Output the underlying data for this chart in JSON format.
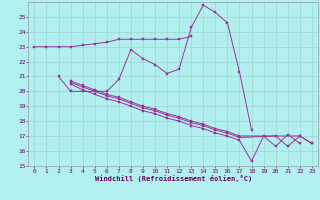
{
  "xlabel": "Windchill (Refroidissement éolien,°C)",
  "line_color": "#993399",
  "bg_color": "#b2f0f0",
  "grid_color": "#aadddd",
  "ylim": [
    15,
    26
  ],
  "xlim": [
    -0.5,
    23.5
  ],
  "yticks": [
    15,
    16,
    17,
    18,
    19,
    20,
    21,
    22,
    23,
    24,
    25
  ],
  "xticks": [
    0,
    1,
    2,
    3,
    4,
    5,
    6,
    7,
    8,
    9,
    10,
    11,
    12,
    13,
    14,
    15,
    16,
    17,
    18,
    19,
    20,
    21,
    22,
    23
  ],
  "line1_x": [
    0,
    1,
    2,
    3,
    4,
    5,
    6,
    7,
    8,
    9,
    10,
    11,
    12,
    13
  ],
  "line1_y": [
    23.0,
    23.0,
    23.0,
    23.0,
    23.1,
    23.2,
    23.3,
    23.5,
    23.5,
    23.5,
    23.5,
    23.5,
    23.5,
    23.7
  ],
  "line2_x": [
    2,
    3,
    4,
    5,
    6,
    7,
    8,
    9,
    10,
    11,
    12,
    13,
    14,
    15,
    16,
    17,
    18
  ],
  "line2_y": [
    21.0,
    20.0,
    20.0,
    20.0,
    20.0,
    20.8,
    22.8,
    22.2,
    21.8,
    21.2,
    21.5,
    24.3,
    25.8,
    25.3,
    24.6,
    21.3,
    17.4
  ],
  "line3_x": [
    3,
    4,
    5,
    6,
    7,
    8,
    9,
    10,
    11,
    12,
    13,
    14,
    15,
    16,
    17,
    18,
    19,
    20,
    21,
    22,
    23
  ],
  "line3_y": [
    20.5,
    20.1,
    19.8,
    19.5,
    19.3,
    19.0,
    18.7,
    18.5,
    18.2,
    18.0,
    17.7,
    17.5,
    17.2,
    17.0,
    16.7,
    15.3,
    17.0,
    16.3,
    17.1,
    16.5,
    null
  ],
  "line4_x": [
    3,
    4,
    5,
    6,
    7,
    8,
    9,
    10,
    11,
    12,
    13,
    14,
    15,
    16,
    17,
    20,
    21,
    22,
    23
  ],
  "line4_y": [
    20.6,
    20.3,
    20.0,
    19.7,
    19.5,
    19.2,
    18.9,
    18.7,
    18.4,
    18.2,
    17.9,
    17.7,
    17.4,
    17.2,
    16.9,
    17.0,
    16.3,
    17.0,
    16.5
  ],
  "line5_x": [
    3,
    4,
    5,
    6,
    7,
    8,
    9,
    10,
    11,
    12,
    13,
    14,
    15,
    16,
    17,
    22,
    23
  ],
  "line5_y": [
    20.7,
    20.4,
    20.1,
    19.8,
    19.6,
    19.3,
    19.0,
    18.8,
    18.5,
    18.3,
    18.0,
    17.8,
    17.5,
    17.3,
    17.0,
    17.0,
    16.5
  ]
}
